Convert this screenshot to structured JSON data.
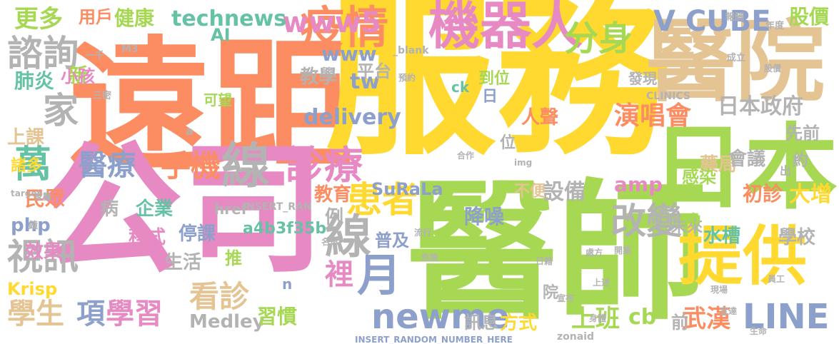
{
  "palette": {
    "orange": "#fc8d62",
    "pink": "#e78ac3",
    "green": "#a6d854",
    "yellow": "#ffd92f",
    "tan": "#e5c494",
    "grey": "#b3b3b3",
    "blue": "#8da0cb",
    "teal": "#66c2a5"
  },
  "words": [
    {
      "text": "遠距",
      "color": "#fc8d62"
    },
    {
      "text": "服務",
      "color": "#ffd92f"
    },
    {
      "text": "醫師",
      "color": "#a6d854"
    },
    {
      "text": "公司",
      "color": "#e78ac3"
    },
    {
      "text": "醫院",
      "color": "#e5c494"
    },
    {
      "text": "日本",
      "color": "#a6d854"
    },
    {
      "text": "機器人",
      "color": "#e78ac3"
    },
    {
      "text": "提供",
      "color": "#ffd92f"
    },
    {
      "text": "疫情",
      "color": "#fc8d62"
    },
    {
      "text": "線",
      "color": "#b3b3b3"
    },
    {
      "text": "診療",
      "color": "#e78ac3"
    },
    {
      "text": "醫療",
      "color": "#8da0cb"
    },
    {
      "text": "手機",
      "color": "#fc8d62"
    },
    {
      "text": "分身",
      "color": "#a6d854"
    },
    {
      "text": "患者",
      "color": "#ffd92f"
    },
    {
      "text": "線",
      "color": "#b3b3b3"
    },
    {
      "text": "月",
      "color": "#8da0cb"
    },
    {
      "text": "改變",
      "color": "#b3b3b3"
    },
    {
      "text": "諮詢",
      "color": "#b3b3b3"
    },
    {
      "text": "萬",
      "color": "#66c2a5"
    },
    {
      "text": "視訊",
      "color": "#b3b3b3"
    },
    {
      "text": "家",
      "color": "#b3b3b3"
    },
    {
      "text": "看診",
      "color": "#e5c494"
    },
    {
      "text": "學習",
      "color": "#e78ac3"
    },
    {
      "text": "學生",
      "color": "#e5c494"
    },
    {
      "text": "項",
      "color": "#8da0cb"
    },
    {
      "text": "newme",
      "color": "#8da0cb"
    },
    {
      "text": "LINE",
      "color": "#8da0cb"
    },
    {
      "text": "V CUBE",
      "color": "#8da0cb"
    },
    {
      "text": "www5",
      "color": "#e78ac3"
    },
    {
      "text": "technews",
      "color": "#66c2a5"
    },
    {
      "text": "www",
      "color": "#8da0cb"
    },
    {
      "text": "tw",
      "color": "#8da0cb"
    },
    {
      "text": "delivery",
      "color": "#8da0cb"
    },
    {
      "text": "演唱會",
      "color": "#fc8d62"
    },
    {
      "text": "日本政府",
      "color": "#b3b3b3"
    },
    {
      "text": "裡",
      "color": "#e78ac3"
    },
    {
      "text": "上班",
      "color": "#a6d854"
    },
    {
      "text": "武漢",
      "color": "#fc8d62"
    },
    {
      "text": "cb",
      "color": "#a6d854"
    },
    {
      "text": "amp",
      "color": "#e78ac3"
    },
    {
      "text": "SuRaLa",
      "color": "#8da0cb"
    },
    {
      "text": "a4b3f35b",
      "color": "#66c2a5"
    },
    {
      "text": "Medley",
      "color": "#b3b3b3"
    },
    {
      "text": "習慣",
      "color": "#a6d854"
    },
    {
      "text": "推",
      "color": "#a6d854"
    },
    {
      "text": "股價",
      "color": "#a6d854"
    },
    {
      "text": "更多",
      "color": "#a6d854"
    },
    {
      "text": "健康",
      "color": "#a6d854"
    },
    {
      "text": "用戶",
      "color": "#fc8d62"
    },
    {
      "text": "肺炎",
      "color": "#66c2a5"
    },
    {
      "text": "上課",
      "color": "#e5c494"
    },
    {
      "text": "民眾",
      "color": "#fc8d62"
    },
    {
      "text": "php",
      "color": "#8da0cb"
    },
    {
      "text": "新",
      "color": "#a6d854"
    },
    {
      "text": "藥局",
      "color": "#e5c494"
    },
    {
      "text": "感染",
      "color": "#a6d854"
    },
    {
      "text": "會議",
      "color": "#b3b3b3"
    },
    {
      "text": "大增",
      "color": "#ffd92f"
    },
    {
      "text": "初診",
      "color": "#fc8d62"
    },
    {
      "text": "水槽",
      "color": "#66c2a5"
    },
    {
      "text": "學校",
      "color": "#b3b3b3"
    },
    {
      "text": "設備",
      "color": "#b3b3b3"
    },
    {
      "text": "降噪",
      "color": "#8da0cb"
    },
    {
      "text": "企業",
      "color": "#66c2a5"
    },
    {
      "text": "程式",
      "color": "#e78ac3"
    },
    {
      "text": "停課",
      "color": "#8da0cb"
    },
    {
      "text": "生活",
      "color": "#b3b3b3"
    },
    {
      "text": "教學",
      "color": "#b3b3b3"
    },
    {
      "text": "平台",
      "color": "#b3b3b3"
    },
    {
      "text": "人聲",
      "color": "#fc8d62"
    },
    {
      "text": "效果",
      "color": "#e78ac3"
    },
    {
      "text": "病",
      "color": "#b3b3b3"
    },
    {
      "text": "教育",
      "color": "#fc8d62"
    },
    {
      "text": "例",
      "color": "#b3b3b3"
    },
    {
      "text": "普及",
      "color": "#8da0cb"
    },
    {
      "text": "方式",
      "color": "#ffd92f"
    },
    {
      "text": "訊息",
      "color": "#b3b3b3"
    },
    {
      "text": "前",
      "color": "#b3b3b3"
    },
    {
      "text": "先前",
      "color": "#b3b3b3"
    },
    {
      "text": "小孩",
      "color": "#e78ac3"
    },
    {
      "text": "Krisp",
      "color": "#ffd92f"
    },
    {
      "text": "AI",
      "color": "#66c2a5"
    },
    {
      "text": "可望",
      "color": "#a6d854"
    },
    {
      "text": "諸多",
      "color": "#ffd92f"
    },
    {
      "text": "位",
      "color": "#b3b3b3"
    },
    {
      "text": "到位",
      "color": "#a6d854"
    },
    {
      "text": "日",
      "color": "#8da0cb"
    },
    {
      "text": "院",
      "color": "#b3b3b3"
    },
    {
      "text": "約",
      "color": "#b3b3b3"
    },
    {
      "text": "未來",
      "color": "#b3b3b3"
    },
    {
      "text": "中",
      "color": "#a6d854"
    },
    {
      "text": "不便",
      "color": "#e5c494"
    },
    {
      "text": "發現",
      "color": "#b3b3b3"
    },
    {
      "text": "ck",
      "color": "#66c2a5"
    },
    {
      "text": "href",
      "color": "#b3b3b3"
    },
    {
      "text": "n",
      "color": "#8da0cb"
    },
    {
      "text": "a",
      "color": "#b3b3b3"
    },
    {
      "text": "出",
      "color": "#b3b3b3"
    },
    {
      "text": "INSERT_RANDOM_NUMBER_HERE",
      "color": "#8da0cb"
    },
    {
      "text": "INSERT_RAN",
      "color": "#b3b3b3"
    },
    {
      "text": "CLINICS",
      "color": "#b3b3b3"
    },
    {
      "text": "_blank",
      "color": "#b3b3b3"
    },
    {
      "text": "target",
      "color": "#b3b3b3"
    },
    {
      "text": "zonaid",
      "color": "#b3b3b3"
    },
    {
      "text": "img",
      "color": "#b3b3b3"
    },
    {
      "text": "M3",
      "color": "#b3b3b3"
    },
    {
      "text": "一千",
      "color": "#b3b3b3"
    },
    {
      "text": "三密",
      "color": "#b3b3b3"
    },
    {
      "text": "鐘",
      "color": "#b3b3b3"
    },
    {
      "text": "成立",
      "color": "#b3b3b3"
    },
    {
      "text": "股價",
      "color": "#b3b3b3"
    },
    {
      "text": "年度",
      "color": "#b3b3b3"
    },
    {
      "text": "報酬",
      "color": "#b3b3b3"
    },
    {
      "text": "預約",
      "color": "#b3b3b3"
    },
    {
      "text": "處方",
      "color": "#b3b3b3"
    },
    {
      "text": "合作",
      "color": "#b3b3b3"
    },
    {
      "text": "生命",
      "color": "#b3b3b3"
    },
    {
      "text": "身體",
      "color": "#b3b3b3"
    },
    {
      "text": "家醫",
      "color": "#b3b3b3"
    },
    {
      "text": "名單",
      "color": "#b3b3b3"
    },
    {
      "text": "危險",
      "color": "#b3b3b3"
    },
    {
      "text": "流行",
      "color": "#b3b3b3"
    },
    {
      "text": "開業",
      "color": "#b3b3b3"
    },
    {
      "text": "宣布",
      "color": "#b3b3b3"
    },
    {
      "text": "日籍",
      "color": "#b3b3b3"
    },
    {
      "text": "宣達",
      "color": "#b3b3b3"
    },
    {
      "text": "上述",
      "color": "#b3b3b3"
    },
    {
      "text": "現場",
      "color": "#b3b3b3"
    },
    {
      "text": "員工",
      "color": "#b3b3b3"
    }
  ]
}
